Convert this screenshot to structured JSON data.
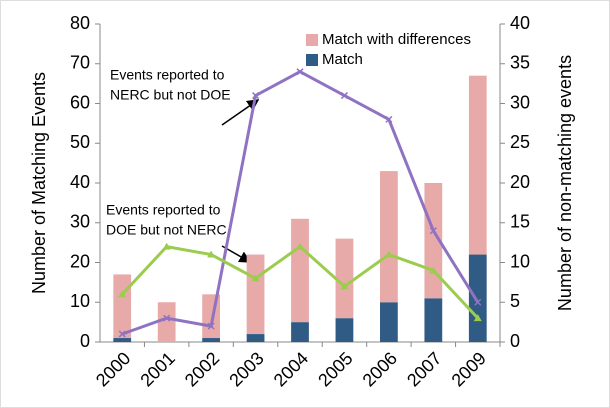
{
  "chart_data": {
    "type": "bar",
    "stacked": true,
    "categories": [
      "2000",
      "2001",
      "2002",
      "2003",
      "2004",
      "2005",
      "2006",
      "2007",
      "2009"
    ],
    "series": [
      {
        "name": "Match",
        "color": "#2f5b84",
        "values": [
          1,
          0,
          1,
          2,
          5,
          6,
          10,
          11,
          22
        ]
      },
      {
        "name": "Match with differences",
        "color": "#e8aaa8",
        "values": [
          16,
          10,
          11,
          20,
          26,
          20,
          33,
          29,
          45
        ]
      }
    ],
    "lines": [
      {
        "color": "#8f72c2",
        "marker": "x",
        "axis": "y2",
        "values": [
          1,
          3,
          2,
          31,
          34,
          31,
          28,
          14,
          5
        ]
      },
      {
        "color": "#9ccc4e",
        "marker": "triangle",
        "axis": "y2",
        "values": [
          6,
          12,
          11,
          8,
          12,
          7,
          11,
          9,
          3
        ]
      }
    ],
    "ylabel": "Number of Matching Events",
    "y2label": "Number of non-matching events",
    "ylim": [
      0,
      80
    ],
    "yticks": [
      0,
      10,
      20,
      30,
      40,
      50,
      60,
      70,
      80
    ],
    "y2lim": [
      0,
      40
    ],
    "y2ticks": [
      0,
      5,
      10,
      15,
      20,
      25,
      30,
      35,
      40
    ],
    "legend": "upper-right",
    "annotations": [
      {
        "lines": [
          "Events reported to",
          "NERC but not DOE"
        ]
      },
      {
        "lines": [
          "Events reported to",
          "DOE but not NERC"
        ]
      }
    ]
  }
}
